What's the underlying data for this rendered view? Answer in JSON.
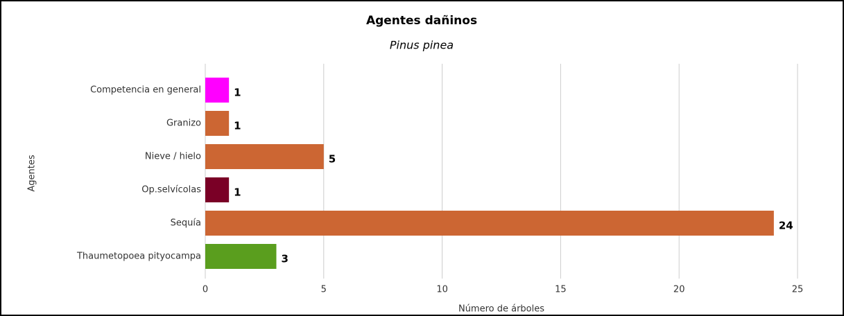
{
  "chart_data": {
    "type": "bar",
    "orientation": "horizontal",
    "title": "Agentes dañinos",
    "subtitle": "Pinus pinea",
    "y_label": "Agentes",
    "x_label": "Número de árboles",
    "categories": [
      "Competencia en general",
      "Granizo",
      "Nieve / hielo",
      "Op.selvícolas",
      "Sequía",
      "Thaumetopoea pityocampa"
    ],
    "values": [
      1,
      1,
      5,
      1,
      24,
      3
    ],
    "colors": [
      "#ff00ff",
      "#cc6633",
      "#cc6633",
      "#7a0026",
      "#cc6633",
      "#5a9e1e"
    ],
    "xlim": [
      0,
      25
    ],
    "xticks": [
      0,
      5,
      10,
      15,
      20,
      25
    ],
    "grid": true
  }
}
